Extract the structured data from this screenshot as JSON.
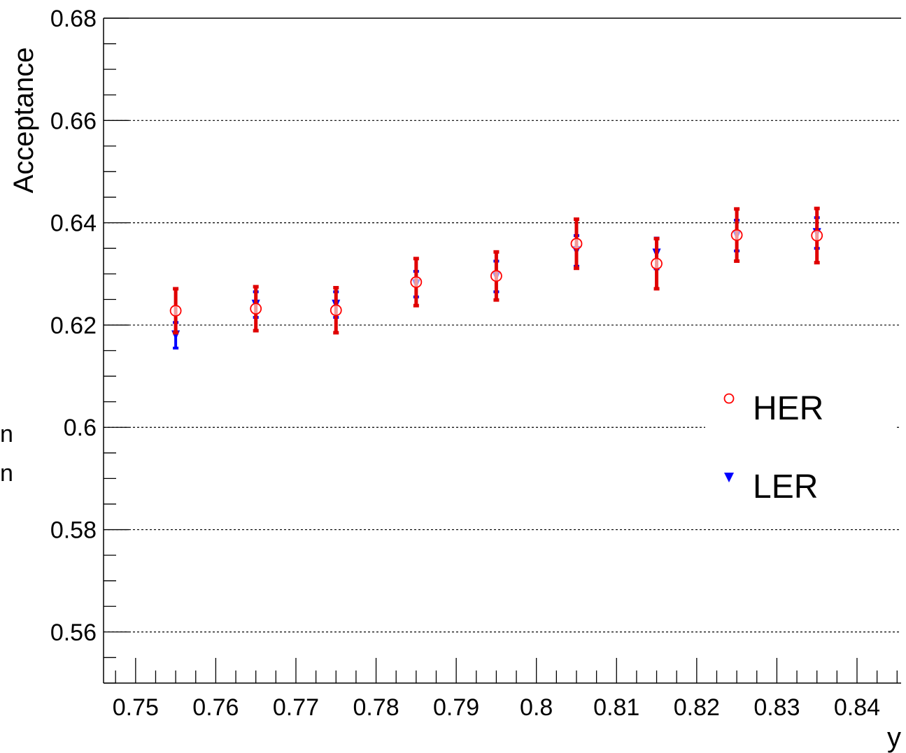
{
  "side_fragments": [
    "n",
    "n"
  ],
  "chart_data": {
    "type": "scatter",
    "title": "",
    "xlabel": "y",
    "ylabel": "Acceptance",
    "xlim": [
      0.746,
      0.8455
    ],
    "ylim": [
      0.55,
      0.68
    ],
    "x_ticks": [
      0.75,
      0.76,
      0.77,
      0.78,
      0.79,
      0.8,
      0.81,
      0.82,
      0.83,
      0.84
    ],
    "x_tick_labels": [
      "0.75",
      "0.76",
      "0.77",
      "0.78",
      "0.79",
      "0.8",
      "0.81",
      "0.82",
      "0.83",
      "0.84"
    ],
    "y_ticks": [
      0.56,
      0.58,
      0.6,
      0.62,
      0.64,
      0.66,
      0.68
    ],
    "y_tick_labels": [
      "0.56",
      "0.58",
      "0.6",
      "0.62",
      "0.64",
      "0.66",
      "0.68"
    ],
    "grid": {
      "horizontal": true,
      "vertical": false,
      "style": "dotted"
    },
    "legend_position": "right",
    "x": [
      0.755,
      0.765,
      0.775,
      0.785,
      0.795,
      0.805,
      0.815,
      0.825,
      0.835
    ],
    "series": [
      {
        "name": "HER",
        "marker": "open-circle",
        "color": "#ff0000",
        "errorbar_color": "#e00000",
        "values": [
          0.6228,
          0.6232,
          0.6229,
          0.6284,
          0.6296,
          0.6359,
          0.632,
          0.6376,
          0.6375
        ],
        "errors": [
          0.0043,
          0.0043,
          0.0044,
          0.0046,
          0.0047,
          0.0048,
          0.0049,
          0.0051,
          0.0053
        ]
      },
      {
        "name": "LER",
        "marker": "filled-triangle-down",
        "color": "#0000ff",
        "errorbar_color": "#0000ff",
        "values": [
          0.618,
          0.624,
          0.624,
          0.628,
          0.6295,
          0.6345,
          0.634,
          0.6375,
          0.638
        ],
        "errors": [
          0.0025,
          0.0025,
          0.0025,
          0.0025,
          0.003,
          0.003,
          0.003,
          0.003,
          0.003
        ]
      }
    ]
  }
}
